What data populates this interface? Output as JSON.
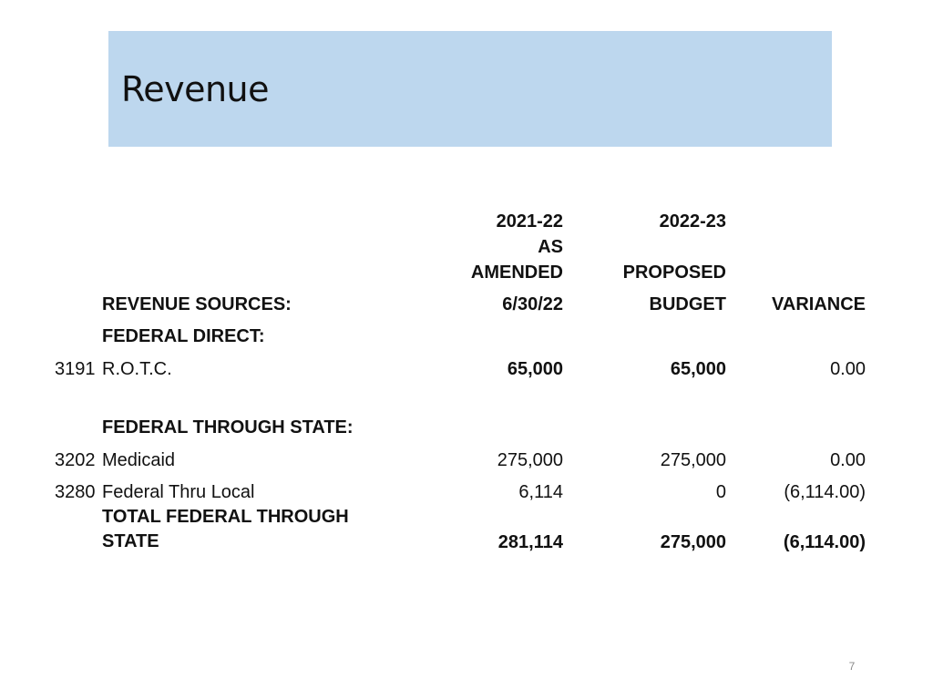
{
  "slide": {
    "title": "Revenue",
    "page_number": "7"
  },
  "table": {
    "header": {
      "col1_line1": "2021-22",
      "col1_line2": "AS",
      "col1_line3": "AMENDED",
      "col1_line4": "6/30/22",
      "col2_line1": "2022-23",
      "col2_line3": "PROPOSED",
      "col2_line4": "BUDGET",
      "col3_line4": "VARIANCE",
      "section_label": "REVENUE SOURCES:"
    },
    "federal_direct": {
      "heading": "FEDERAL DIRECT:",
      "rows": [
        {
          "code": "3191",
          "label": "R.O.T.C.",
          "amended": "65,000",
          "proposed": "65,000",
          "variance": "0.00"
        }
      ]
    },
    "federal_through_state": {
      "heading": "FEDERAL THROUGH STATE:",
      "rows": [
        {
          "code": "3202",
          "label": "Medicaid",
          "amended": "275,000",
          "proposed": "275,000",
          "variance": "0.00"
        },
        {
          "code": "3280",
          "label": "Federal Thru Local",
          "amended": "6,114",
          "proposed": "0",
          "variance": "(6,114.00)"
        }
      ],
      "total": {
        "label_line1": "TOTAL FEDERAL THROUGH",
        "label_line2": "STATE",
        "amended": "281,114",
        "proposed": "275,000",
        "variance": "(6,114.00)"
      }
    }
  }
}
